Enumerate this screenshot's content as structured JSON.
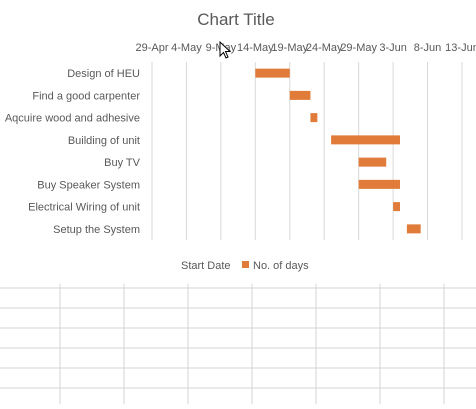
{
  "chart_data": {
    "type": "bar",
    "orientation": "horizontal",
    "stacked": true,
    "title": "Chart Title",
    "x_ticks": [
      "29-Apr",
      "4-May",
      "9-May",
      "14-May",
      "19-May",
      "24-May",
      "29-May",
      "3-Jun",
      "8-Jun",
      "13-Jun"
    ],
    "x_axis_position": "top",
    "xlim": [
      "29-Apr",
      "13-Jun"
    ],
    "categories": [
      "Design of HEU",
      "Find a good carpenter",
      "Aqcuire wood and adhesive",
      "Building of unit",
      "Buy TV",
      "Buy Speaker System",
      "Electrical Wiring of unit",
      "Setup the System"
    ],
    "series": [
      {
        "name": "Start Date",
        "visible": false,
        "values": [
          "14-May",
          "19-May",
          "22-May",
          "25-May",
          "29-May",
          "29-May",
          "3-Jun",
          "5-Jun"
        ]
      },
      {
        "name": "No. of days",
        "color": "#e07b39",
        "values": [
          5,
          3,
          1,
          10,
          4,
          6,
          1,
          2
        ]
      }
    ],
    "legend_position": "bottom",
    "grid": true
  },
  "colors": {
    "bar": "#e07b39",
    "gridline": "#d9d9d9",
    "text": "#595959",
    "title": "#595959",
    "sheet_grid": "#d4d4d4"
  }
}
